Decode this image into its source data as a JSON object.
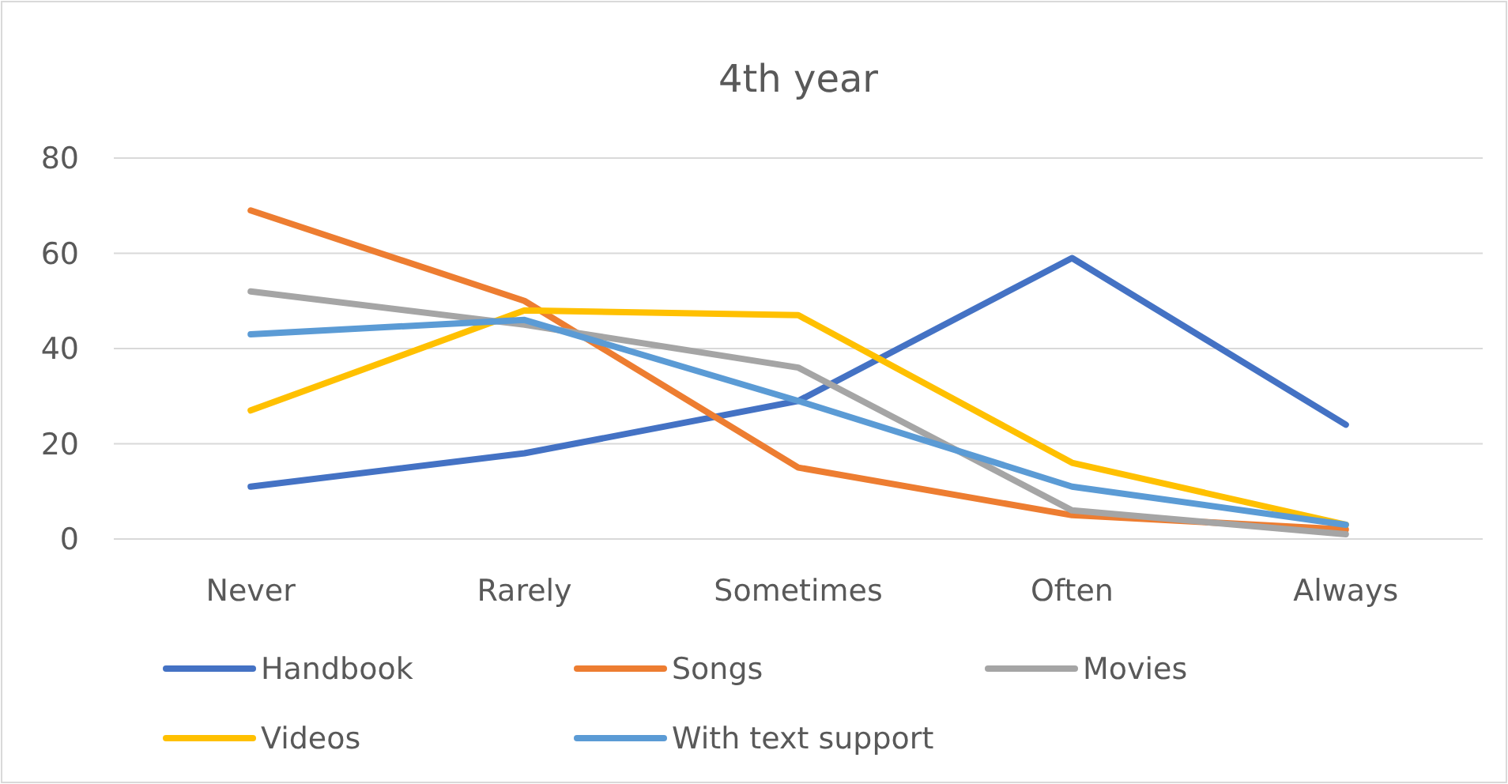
{
  "chart_data": {
    "type": "line",
    "title": "4th year",
    "categories": [
      "Never",
      "Rarely",
      "Sometimes",
      "Often",
      "Always"
    ],
    "series": [
      {
        "name": "Handbook",
        "color": "#4472c4",
        "values": [
          11,
          18,
          29,
          59,
          24
        ]
      },
      {
        "name": "Songs",
        "color": "#ed7d31",
        "values": [
          69,
          50,
          15,
          5,
          2
        ]
      },
      {
        "name": "Movies",
        "color": "#a5a5a5",
        "values": [
          52,
          45,
          36,
          6,
          1
        ]
      },
      {
        "name": "Videos",
        "color": "#ffc000",
        "values": [
          27,
          48,
          47,
          16,
          3
        ]
      },
      {
        "name": "With text support",
        "color": "#5b9bd5",
        "values": [
          43,
          46,
          29,
          11,
          3
        ]
      }
    ],
    "ylim": [
      0,
      80
    ],
    "yticks": [
      0,
      20,
      40,
      60,
      80
    ],
    "grid": "y",
    "legend": "bottom",
    "marker": "none",
    "line_style": "solid"
  }
}
